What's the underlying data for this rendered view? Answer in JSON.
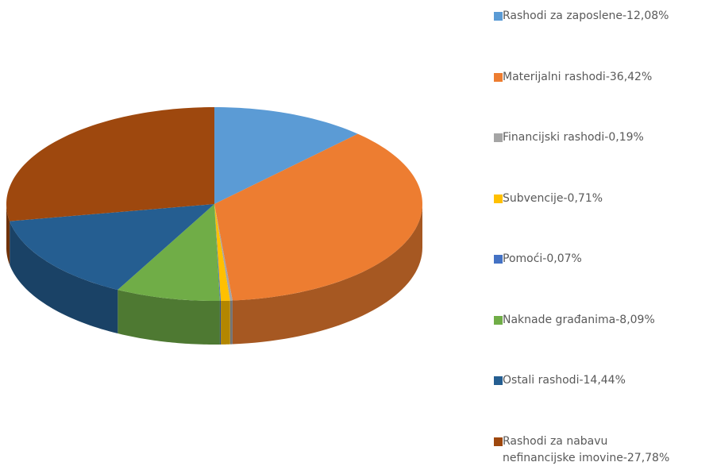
{
  "chart_data": {
    "type": "pie",
    "style": "3d",
    "categories": [
      "Rashodi za zaposlene-12,08%",
      "Materijalni rashodi-36,42%",
      "Financijski rashodi-0,19%",
      "Subvencije-0,71%",
      "Pomoći-0,07%",
      "Naknade građanima-8,09%",
      "Ostali rashodi-14,44%",
      "Rashodi za nabavu\nnefinancijske imovine-27,78%"
    ],
    "values": [
      12.08,
      36.42,
      0.19,
      0.71,
      0.07,
      8.09,
      14.44,
      27.78
    ],
    "colors": [
      "#5b9bd5",
      "#ed7d31",
      "#a5a5a5",
      "#ffc000",
      "#4472c4",
      "#70ad47",
      "#255e91",
      "#9e480e"
    ],
    "legend": "right"
  }
}
